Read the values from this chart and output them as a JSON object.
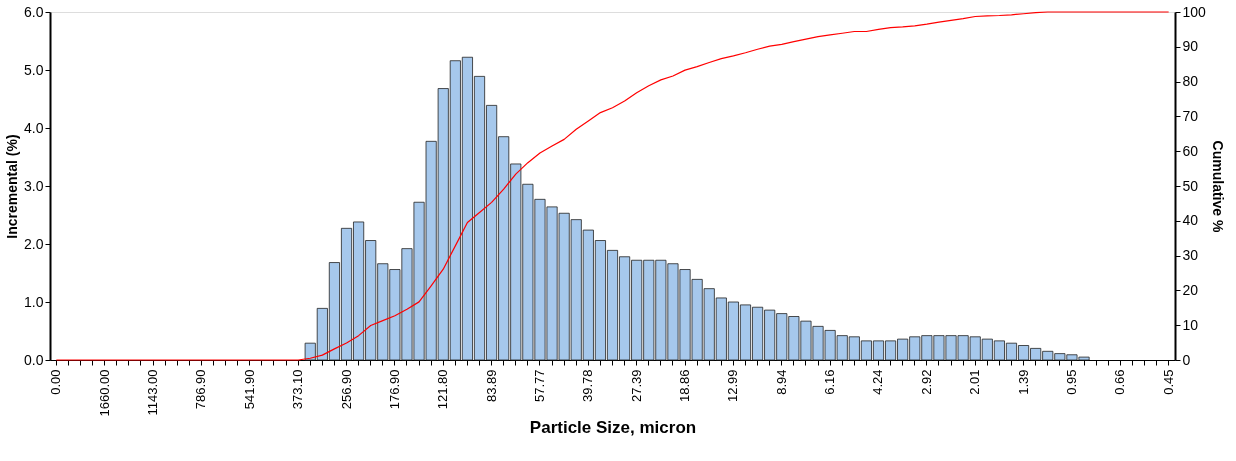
{
  "chart_data": {
    "type": "bar",
    "xlabel": "Particle Size, micron",
    "ylabel": "Incremental (%)",
    "y2label": "Cumulative %",
    "categories": [
      "0.00",
      null,
      null,
      null,
      "1660.00",
      null,
      null,
      null,
      "1143.00",
      null,
      null,
      null,
      "786.90",
      null,
      null,
      null,
      "541.90",
      null,
      null,
      null,
      "373.10",
      null,
      null,
      null,
      "256.90",
      null,
      null,
      null,
      "176.90",
      null,
      null,
      null,
      "121.80",
      null,
      null,
      null,
      "83.89",
      null,
      null,
      null,
      "57.77",
      null,
      null,
      null,
      "39.78",
      null,
      null,
      null,
      "27.39",
      null,
      null,
      null,
      "18.86",
      null,
      null,
      null,
      "12.99",
      null,
      null,
      null,
      "8.94",
      null,
      null,
      null,
      "6.16",
      null,
      null,
      null,
      "4.24",
      null,
      null,
      null,
      "2.92",
      null,
      null,
      null,
      "2.01",
      null,
      null,
      null,
      "1.39",
      null,
      null,
      null,
      "0.95",
      null,
      null,
      null,
      "0.66",
      null,
      null,
      null,
      "0.45"
    ],
    "series": [
      {
        "color": "#a6c8ec",
        "values": [
          0,
          0,
          0,
          0,
          0,
          0,
          0,
          0,
          0,
          0,
          0,
          0,
          0,
          0,
          0,
          0,
          0,
          0,
          0,
          0,
          0,
          0.29,
          0.89,
          1.68,
          2.27,
          2.38,
          2.06,
          1.66,
          1.56,
          1.92,
          2.72,
          3.77,
          4.68,
          5.16,
          5.22,
          4.89,
          4.39,
          3.85,
          3.38,
          3.03,
          2.77,
          2.64,
          2.53,
          2.42,
          2.24,
          2.06,
          1.89,
          1.78,
          1.72,
          1.72,
          1.72,
          1.66,
          1.56,
          1.39,
          1.23,
          1.07,
          1.0,
          0.95,
          0.91,
          0.86,
          0.8,
          0.75,
          0.67,
          0.58,
          0.51,
          0.42,
          0.4,
          0.33,
          0.33,
          0.33,
          0.36,
          0.4,
          0.42,
          0.42,
          0.42,
          0.42,
          0.4,
          0.36,
          0.33,
          0.29,
          0.25,
          0.2,
          0.15,
          0.11,
          0.09,
          0.05,
          0,
          0,
          0,
          0,
          0,
          0,
          0
        ]
      },
      {
        "type": "line",
        "axis": "y2",
        "color": "#ff0000",
        "values": [
          0,
          0,
          0,
          0,
          0,
          0,
          0,
          0,
          0,
          0,
          0,
          0,
          0,
          0,
          0,
          0,
          0,
          0,
          0,
          0,
          0,
          0.5,
          1.4,
          3.2,
          4.9,
          7.0,
          9.9,
          11.3,
          12.7,
          14.6,
          16.7,
          21.3,
          26.1,
          32.8,
          39.5,
          42.4,
          45.3,
          49.1,
          53.4,
          56.7,
          59.5,
          61.5,
          63.4,
          66.3,
          68.7,
          71.1,
          72.5,
          74.4,
          76.8,
          78.8,
          80.5,
          81.6,
          83.3,
          84.3,
          85.5,
          86.6,
          87.4,
          88.3,
          89.3,
          90.2,
          90.7,
          91.5,
          92.2,
          92.9,
          93.4,
          93.9,
          94.4,
          94.4,
          95.0,
          95.5,
          95.7,
          96.0,
          96.5,
          97.1,
          97.6,
          98.1,
          98.7,
          98.9,
          99.0,
          99.2,
          99.5,
          99.8,
          100,
          100,
          100,
          100,
          100,
          100,
          100,
          100,
          100,
          100,
          100
        ]
      }
    ],
    "ylim": [
      0,
      6
    ],
    "yticks": [
      {
        "value": 0,
        "label": "0.0"
      },
      {
        "value": 1,
        "label": "1.0"
      },
      {
        "value": 2,
        "label": "2.0"
      },
      {
        "value": 3,
        "label": "3.0"
      },
      {
        "value": 4,
        "label": "4.0"
      },
      {
        "value": 5,
        "label": "5.0"
      },
      {
        "value": 6,
        "label": "6.0"
      }
    ],
    "y2lim": [
      0,
      100
    ],
    "y2ticks": [
      0,
      10,
      20,
      30,
      40,
      50,
      60,
      70,
      80,
      90,
      100
    ],
    "grid": false
  }
}
